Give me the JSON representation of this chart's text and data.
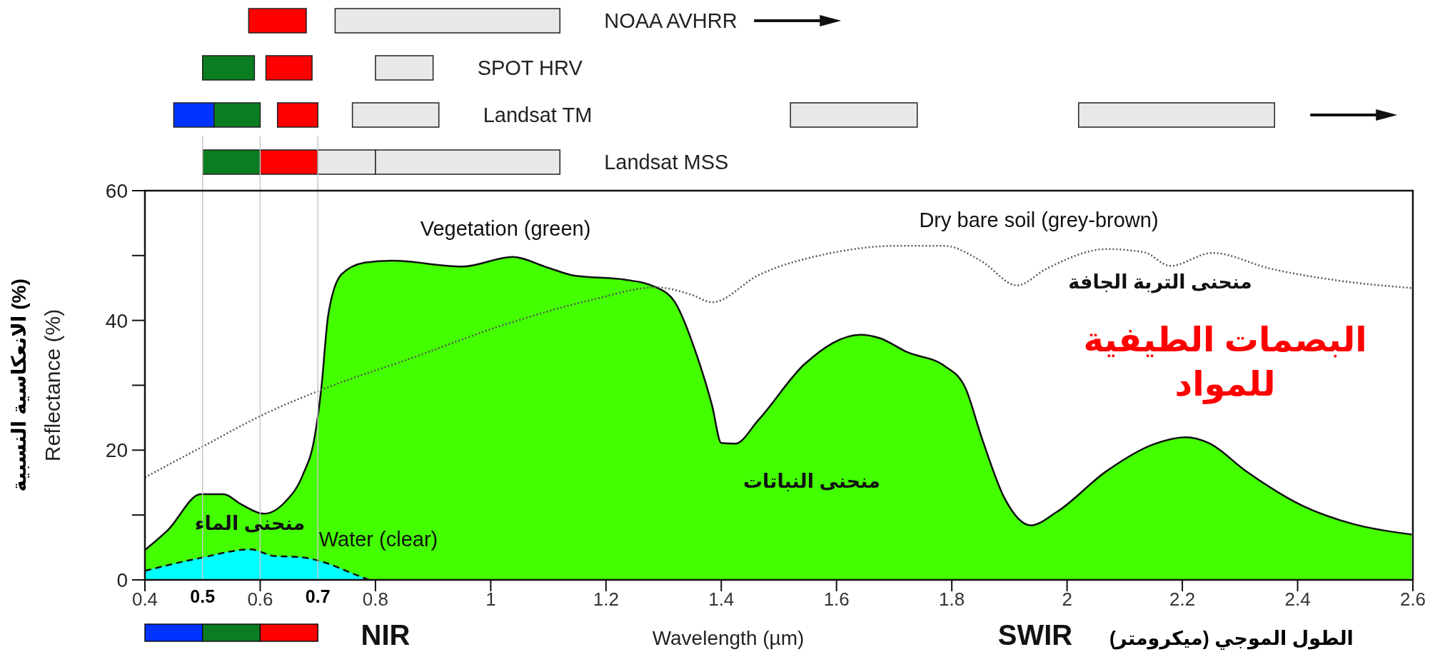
{
  "chart_data": [
    {
      "type": "bar",
      "orientation": "horizontal",
      "categories": [
        "NOAA AVHRR",
        "SPOT HRV",
        "Landsat TM",
        "Landsat MSS"
      ],
      "xlim": [
        0.4,
        2.6
      ],
      "series": [
        {
          "color": "#0033ff",
          "base": [
            null,
            null,
            0.45,
            null
          ],
          "values": [
            null,
            null,
            0.07,
            null
          ]
        },
        {
          "color": "#0a7d20",
          "base": [
            null,
            0.5,
            0.52,
            0.5
          ],
          "values": [
            null,
            0.09,
            0.08,
            0.1
          ]
        },
        {
          "color": "#ff0000",
          "base": [
            0.58,
            0.61,
            0.63,
            0.6
          ],
          "values": [
            0.1,
            0.08,
            0.07,
            0.1
          ]
        },
        {
          "color": "#e8e8e8",
          "base": [
            0.73,
            0.8,
            0.76,
            0.7
          ],
          "values": [
            0.39,
            0.1,
            0.15,
            0.1
          ]
        },
        {
          "color": "#e8e8e8",
          "base": [
            null,
            null,
            1.52,
            0.8
          ],
          "values": [
            null,
            null,
            0.22,
            0.32
          ]
        },
        {
          "color": "#e8e8e8",
          "base": [
            null,
            null,
            2.02,
            null
          ],
          "values": [
            null,
            null,
            0.34,
            null
          ]
        }
      ]
    },
    {
      "type": "area",
      "title": "البصمات الطيفية للمواد",
      "xlabel": "Wavelength (µm)",
      "ylabel": "Reflectance (%)",
      "xlim": [
        0.4,
        2.6
      ],
      "xticks": [
        0.4,
        0.5,
        0.6,
        0.7,
        0.8,
        1.0,
        1.2,
        1.4,
        1.6,
        1.8,
        2.0,
        2.2,
        2.4,
        2.6
      ],
      "ylim": [
        0,
        60
      ],
      "yticks": [
        0,
        20,
        40,
        60
      ],
      "grid": false,
      "ref_lines": [
        {
          "axis": "x",
          "value": 0.5,
          "color": "#c8c8c8"
        },
        {
          "axis": "x",
          "value": 0.6,
          "color": "#c8c8c8"
        },
        {
          "axis": "x",
          "value": 0.7,
          "color": "#c8c8c8"
        }
      ],
      "series": [
        {
          "type": "area",
          "color": "#44ff00",
          "line_style": "solid",
          "x": [
            0.4,
            0.44,
            0.497,
            0.536,
            0.568,
            0.606,
            0.643,
            0.674,
            0.694,
            0.706,
            0.718,
            0.741,
            0.781,
            0.828,
            0.951,
            1.038,
            1.097,
            1.145,
            1.232,
            1.287,
            1.319,
            1.358,
            1.384,
            1.4,
            1.424,
            1.465,
            1.545,
            1.642,
            1.674,
            1.723,
            1.787,
            1.823,
            1.852,
            1.892,
            1.937,
            1.981,
            2.069,
            2.15,
            2.206,
            2.246,
            2.31,
            2.407,
            2.497,
            2.598
          ],
          "values": [
            4.6,
            7.7,
            13.2,
            13.2,
            11.6,
            10.2,
            12,
            16.2,
            21.8,
            29.5,
            40.8,
            47.1,
            48.9,
            49.2,
            48.3,
            49.8,
            48.2,
            46.9,
            46.3,
            45.1,
            42.9,
            34.5,
            26.9,
            21.1,
            21,
            24.7,
            33.3,
            37.8,
            37.3,
            35.1,
            33,
            29.7,
            21.9,
            12.5,
            8.4,
            10.4,
            16.8,
            20.9,
            22,
            21.1,
            16.8,
            11.5,
            8.6,
            7
          ]
        },
        {
          "type": "line",
          "color": "#555555",
          "line_style": "dotted",
          "x": [
            0.4,
            0.497,
            0.606,
            0.706,
            0.86,
            1.019,
            1.177,
            1.287,
            1.35,
            1.384,
            1.465,
            1.586,
            1.706,
            1.787,
            1.852,
            1.913,
            1.965,
            2.069,
            2.134,
            2.179,
            2.252,
            2.352,
            2.474,
            2.598
          ],
          "values": [
            15.8,
            20.4,
            25.5,
            29.3,
            34.1,
            39.2,
            43.2,
            45.1,
            43.9,
            42.8,
            47,
            50.3,
            51.5,
            51.5,
            49.1,
            45.4,
            48,
            51,
            50.5,
            48.4,
            50.4,
            48,
            46.1,
            45
          ]
        },
        {
          "type": "area",
          "color": "#00ffff",
          "line_style": "dashed",
          "x": [
            0.4,
            0.497,
            0.583,
            0.623,
            0.67,
            0.718,
            0.757,
            0.789
          ],
          "values": [
            1.4,
            3.4,
            4.7,
            3.7,
            3.5,
            2.5,
            1.1,
            0
          ]
        }
      ],
      "annotations": [
        "Vegetation (green)",
        "Dry bare soil (grey-brown)",
        "Water (clear)",
        "منحنى الماء",
        "منحنى النباتات",
        "منحنى التربة الجافة",
        "NIR",
        "SWIR",
        "الانعكاسية النسبية (%)",
        "الطول الموجي (ميكرومتر)"
      ]
    }
  ]
}
